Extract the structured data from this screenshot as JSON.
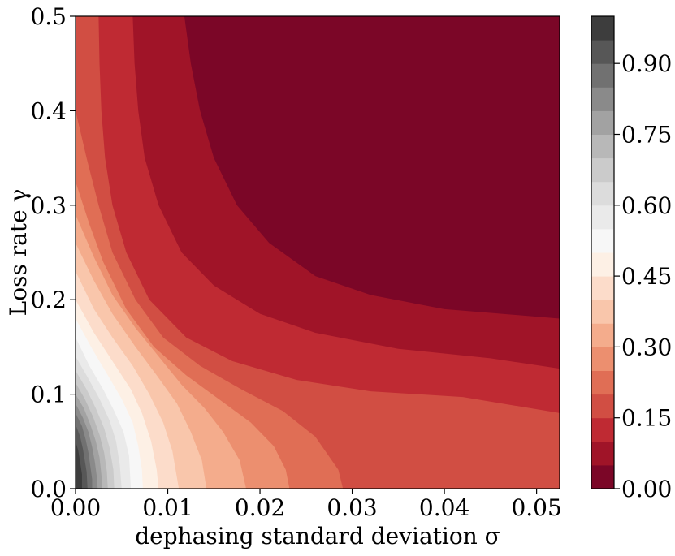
{
  "chart_data": {
    "type": "heatmap",
    "subtype": "filled-contour",
    "title": "",
    "xlabel": "dephasing standard deviation σ",
    "ylabel": "Loss rate γ",
    "xlim": [
      0.0,
      0.0525
    ],
    "ylim": [
      0.0,
      0.5
    ],
    "xticks": [
      "0.00",
      "0.01",
      "0.02",
      "0.03",
      "0.04",
      "0.05"
    ],
    "yticks": [
      "0.0",
      "0.1",
      "0.2",
      "0.3",
      "0.4",
      "0.5"
    ],
    "colorbar": {
      "range": [
        0.0,
        1.0
      ],
      "ticks": [
        "0.00",
        "0.15",
        "0.30",
        "0.45",
        "0.60",
        "0.75",
        "0.90"
      ],
      "levels": [
        0.0,
        0.05,
        0.1,
        0.15,
        0.2,
        0.25,
        0.3,
        0.35,
        0.4,
        0.45,
        0.5,
        0.55,
        0.6,
        0.65,
        0.7,
        0.75,
        0.8,
        0.85,
        0.9,
        0.95,
        1.0
      ],
      "colormap": "RdGy",
      "colors": [
        "#7b0627",
        "#a01428",
        "#bf2a33",
        "#d14e43",
        "#e06e55",
        "#ec8f6f",
        "#f4ac8c",
        "#f9c6ab",
        "#fcdcca",
        "#fdf0e5",
        "#f7f7f7",
        "#eaeaea",
        "#dcdcdc",
        "#cbcbcb",
        "#b8b8b8",
        "#a2a2a2",
        "#8a8a8a",
        "#717171",
        "#575757",
        "#3d3d3d"
      ]
    },
    "contour_boundaries": [
      {
        "level": 0.05,
        "points": [
          [
            0.0118,
            0.5
          ],
          [
            0.0125,
            0.45
          ],
          [
            0.0135,
            0.4
          ],
          [
            0.015,
            0.35
          ],
          [
            0.0175,
            0.3
          ],
          [
            0.021,
            0.26
          ],
          [
            0.026,
            0.225
          ],
          [
            0.032,
            0.205
          ],
          [
            0.04,
            0.19
          ],
          [
            0.0525,
            0.18
          ]
        ]
      },
      {
        "level": 0.1,
        "points": [
          [
            0.0062,
            0.5
          ],
          [
            0.0064,
            0.45
          ],
          [
            0.0068,
            0.4
          ],
          [
            0.0075,
            0.35
          ],
          [
            0.009,
            0.3
          ],
          [
            0.0115,
            0.25
          ],
          [
            0.015,
            0.215
          ],
          [
            0.02,
            0.185
          ],
          [
            0.026,
            0.165
          ],
          [
            0.035,
            0.148
          ],
          [
            0.045,
            0.138
          ],
          [
            0.0525,
            0.127
          ]
        ]
      },
      {
        "level": 0.15,
        "points": [
          [
            0.0025,
            0.5
          ],
          [
            0.0026,
            0.45
          ],
          [
            0.0028,
            0.4
          ],
          [
            0.0032,
            0.35
          ],
          [
            0.004,
            0.3
          ],
          [
            0.0055,
            0.25
          ],
          [
            0.008,
            0.2
          ],
          [
            0.012,
            0.16
          ],
          [
            0.017,
            0.135
          ],
          [
            0.024,
            0.115
          ],
          [
            0.032,
            0.103
          ],
          [
            0.042,
            0.097
          ],
          [
            0.0525,
            0.08
          ]
        ]
      },
      {
        "level": 0.2,
        "points": [
          [
            0.0,
            0.4
          ],
          [
            0.0012,
            0.35
          ],
          [
            0.0025,
            0.3
          ],
          [
            0.004,
            0.25
          ],
          [
            0.0065,
            0.2
          ],
          [
            0.0095,
            0.16
          ],
          [
            0.0135,
            0.13
          ],
          [
            0.018,
            0.105
          ],
          [
            0.0225,
            0.082
          ],
          [
            0.026,
            0.055
          ],
          [
            0.0285,
            0.02
          ],
          [
            0.029,
            0.0
          ]
        ]
      },
      {
        "level": 0.25,
        "points": [
          [
            0.0,
            0.325
          ],
          [
            0.0015,
            0.28
          ],
          [
            0.003,
            0.24
          ],
          [
            0.0055,
            0.19
          ],
          [
            0.0085,
            0.15
          ],
          [
            0.012,
            0.12
          ],
          [
            0.0155,
            0.095
          ],
          [
            0.019,
            0.07
          ],
          [
            0.0215,
            0.045
          ],
          [
            0.0228,
            0.02
          ],
          [
            0.0232,
            0.0
          ]
        ]
      },
      {
        "level": 0.3,
        "points": [
          [
            0.0,
            0.29
          ],
          [
            0.002,
            0.245
          ],
          [
            0.004,
            0.205
          ],
          [
            0.0065,
            0.17
          ],
          [
            0.009,
            0.14
          ],
          [
            0.0115,
            0.11
          ],
          [
            0.014,
            0.085
          ],
          [
            0.016,
            0.06
          ],
          [
            0.0178,
            0.03
          ],
          [
            0.0185,
            0.0
          ]
        ]
      },
      {
        "level": 0.35,
        "points": [
          [
            0.0,
            0.26
          ],
          [
            0.002,
            0.22
          ],
          [
            0.004,
            0.185
          ],
          [
            0.0065,
            0.15
          ],
          [
            0.0088,
            0.12
          ],
          [
            0.011,
            0.09
          ],
          [
            0.0125,
            0.06
          ],
          [
            0.0137,
            0.03
          ],
          [
            0.0142,
            0.0
          ]
        ]
      },
      {
        "level": 0.4,
        "points": [
          [
            0.0,
            0.23
          ],
          [
            0.002,
            0.19
          ],
          [
            0.004,
            0.16
          ],
          [
            0.0062,
            0.13
          ],
          [
            0.008,
            0.1
          ],
          [
            0.0095,
            0.07
          ],
          [
            0.0105,
            0.04
          ],
          [
            0.0112,
            0.0
          ]
        ]
      },
      {
        "level": 0.45,
        "points": [
          [
            0.0,
            0.2
          ],
          [
            0.002,
            0.165
          ],
          [
            0.004,
            0.135
          ],
          [
            0.006,
            0.105
          ],
          [
            0.0072,
            0.08
          ],
          [
            0.0082,
            0.05
          ],
          [
            0.0088,
            0.02
          ],
          [
            0.009,
            0.0
          ]
        ]
      },
      {
        "level": 0.5,
        "points": [
          [
            0.0,
            0.18
          ],
          [
            0.0018,
            0.148
          ],
          [
            0.0035,
            0.12
          ],
          [
            0.005,
            0.095
          ],
          [
            0.0062,
            0.07
          ],
          [
            0.0068,
            0.045
          ],
          [
            0.0072,
            0.02
          ],
          [
            0.0073,
            0.0
          ]
        ]
      },
      {
        "level": 0.55,
        "points": [
          [
            0.0,
            0.16
          ],
          [
            0.0015,
            0.13
          ],
          [
            0.003,
            0.105
          ],
          [
            0.0042,
            0.082
          ],
          [
            0.0052,
            0.06
          ],
          [
            0.0058,
            0.035
          ],
          [
            0.006,
            0.0
          ]
        ]
      },
      {
        "level": 0.6,
        "points": [
          [
            0.0,
            0.14
          ],
          [
            0.0013,
            0.118
          ],
          [
            0.0026,
            0.095
          ],
          [
            0.0037,
            0.072
          ],
          [
            0.0044,
            0.05
          ],
          [
            0.0048,
            0.025
          ],
          [
            0.005,
            0.0
          ]
        ]
      },
      {
        "level": 0.65,
        "points": [
          [
            0.0,
            0.125
          ],
          [
            0.0012,
            0.105
          ],
          [
            0.0022,
            0.085
          ],
          [
            0.0031,
            0.064
          ],
          [
            0.0037,
            0.043
          ],
          [
            0.0041,
            0.02
          ],
          [
            0.0042,
            0.0
          ]
        ]
      },
      {
        "level": 0.7,
        "points": [
          [
            0.0,
            0.112
          ],
          [
            0.001,
            0.095
          ],
          [
            0.0019,
            0.076
          ],
          [
            0.0026,
            0.057
          ],
          [
            0.0031,
            0.038
          ],
          [
            0.0034,
            0.018
          ],
          [
            0.0035,
            0.0
          ]
        ]
      },
      {
        "level": 0.75,
        "points": [
          [
            0.0,
            0.1
          ],
          [
            0.0009,
            0.085
          ],
          [
            0.0016,
            0.068
          ],
          [
            0.0022,
            0.05
          ],
          [
            0.0026,
            0.033
          ],
          [
            0.0028,
            0.015
          ],
          [
            0.0029,
            0.0
          ]
        ]
      },
      {
        "level": 0.8,
        "points": [
          [
            0.0,
            0.09
          ],
          [
            0.0008,
            0.075
          ],
          [
            0.0014,
            0.06
          ],
          [
            0.0018,
            0.044
          ],
          [
            0.0021,
            0.028
          ],
          [
            0.0023,
            0.013
          ],
          [
            0.0024,
            0.0
          ]
        ]
      },
      {
        "level": 0.85,
        "points": [
          [
            0.0,
            0.08
          ],
          [
            0.0007,
            0.066
          ],
          [
            0.0011,
            0.052
          ],
          [
            0.0014,
            0.038
          ],
          [
            0.0016,
            0.024
          ],
          [
            0.0018,
            0.01
          ],
          [
            0.0018,
            0.0
          ]
        ]
      },
      {
        "level": 0.9,
        "points": [
          [
            0.0,
            0.068
          ],
          [
            0.0005,
            0.055
          ],
          [
            0.0008,
            0.042
          ],
          [
            0.001,
            0.03
          ],
          [
            0.0012,
            0.018
          ],
          [
            0.0013,
            0.0
          ]
        ]
      },
      {
        "level": 0.95,
        "points": [
          [
            0.0,
            0.05
          ],
          [
            0.0003,
            0.04
          ],
          [
            0.0005,
            0.028
          ],
          [
            0.0007,
            0.015
          ],
          [
            0.0007,
            0.0
          ]
        ]
      }
    ]
  }
}
